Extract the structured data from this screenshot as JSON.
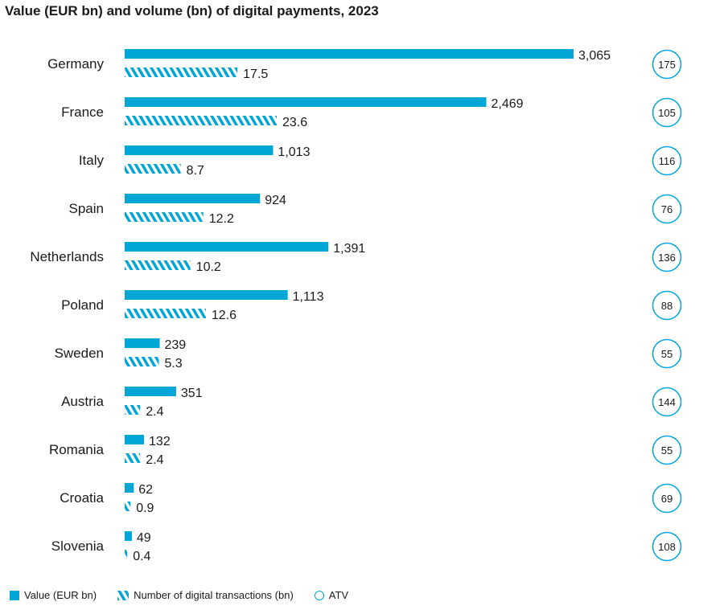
{
  "chart_data": {
    "type": "bar",
    "orientation": "horizontal",
    "title": "Value (EUR bn) and volume (bn) of digital payments, 2023",
    "categories": [
      "Germany",
      "France",
      "Italy",
      "Spain",
      "Netherlands",
      "Poland",
      "Sweden",
      "Austria",
      "Romania",
      "Croatia",
      "Slovenia"
    ],
    "series": [
      {
        "name": "Value (EUR bn)",
        "style": "solid",
        "values": [
          3065,
          2469,
          1013,
          924,
          1391,
          1113,
          239,
          351,
          132,
          62,
          49
        ],
        "labels": [
          "3,065",
          "2,469",
          "1,013",
          "924",
          "1,391",
          "1,113",
          "239",
          "351",
          "132",
          "62",
          "49"
        ]
      },
      {
        "name": "Number of digital transactions (bn)",
        "style": "hatched",
        "values": [
          17.5,
          23.6,
          8.7,
          12.2,
          10.2,
          12.6,
          5.3,
          2.4,
          2.4,
          0.9,
          0.4
        ],
        "labels": [
          "17.5",
          "23.6",
          "8.7",
          "12.2",
          "10.2",
          "12.6",
          "5.3",
          "2.4",
          "2.4",
          "0.9",
          "0.4"
        ]
      },
      {
        "name": "ATV",
        "style": "circle",
        "values": [
          175,
          105,
          116,
          76,
          136,
          88,
          55,
          144,
          55,
          69,
          108
        ],
        "labels": [
          "175",
          "105",
          "116",
          "76",
          "136",
          "88",
          "55",
          "144",
          "55",
          "69",
          "108"
        ]
      }
    ],
    "value_scale_max": 3065,
    "volume_scale_max": 23.6,
    "legend_position": "bottom-left",
    "color": "#00a6d6"
  },
  "legend": {
    "value": "Value (EUR bn)",
    "volume": "Number of digital transactions (bn)",
    "atv": "ATV"
  }
}
